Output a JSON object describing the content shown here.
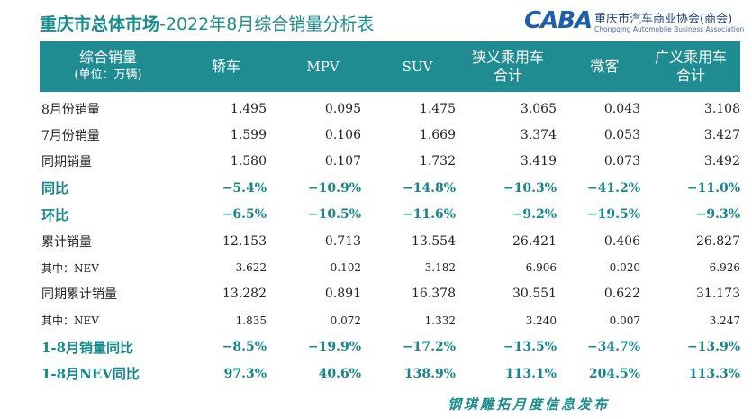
{
  "title": {
    "bold": "重庆市总体市场",
    "rest": "-2022年8月综合销量分析表"
  },
  "logo": {
    "mark": "CABA",
    "name_cn": "重庆市汽车商业协会(商会)",
    "name_en": "Chongqing Automobile Business Association"
  },
  "header": {
    "label_line1": "综合销量",
    "label_line2": "(单位：万辆)",
    "columns": [
      {
        "line1": "轿车",
        "line2": ""
      },
      {
        "line1": "MPV",
        "line2": ""
      },
      {
        "line1": "SUV",
        "line2": ""
      },
      {
        "line1": "狭义乘用车",
        "line2": "合计"
      },
      {
        "line1": "微客",
        "line2": ""
      },
      {
        "line1": "广义乘用车",
        "line2": "合计"
      }
    ]
  },
  "rows": [
    {
      "label": "8月份销量",
      "values": [
        "1.495",
        "0.095",
        "1.475",
        "3.065",
        "0.043",
        "3.108"
      ]
    },
    {
      "label": "7月份销量",
      "values": [
        "1.599",
        "0.106",
        "1.669",
        "3.374",
        "0.053",
        "3.427"
      ]
    },
    {
      "label": "同期销量",
      "values": [
        "1.580",
        "0.107",
        "1.732",
        "3.419",
        "0.073",
        "3.492"
      ]
    },
    {
      "label": "同比",
      "values": [
        "−5.4%",
        "−10.9%",
        "−14.8%",
        "−10.3%",
        "−41.2%",
        "−11.0%"
      ]
    },
    {
      "label": "环比",
      "values": [
        "−6.5%",
        "−10.5%",
        "−11.6%",
        "−9.2%",
        "−19.5%",
        "−9.3%"
      ]
    },
    {
      "label": "累计销量",
      "values": [
        "12.153",
        "0.713",
        "13.554",
        "26.421",
        "0.406",
        "26.827"
      ]
    },
    {
      "label": "其中：NEV",
      "values": [
        "3.622",
        "0.102",
        "3.182",
        "6.906",
        "0.020",
        "6.926"
      ]
    },
    {
      "label": "同期累计销量",
      "values": [
        "13.282",
        "0.891",
        "16.378",
        "30.551",
        "0.622",
        "31.173"
      ]
    },
    {
      "label": "其中：NEV",
      "values": [
        "1.835",
        "0.072",
        "1.332",
        "3.240",
        "0.007",
        "3.247"
      ]
    },
    {
      "label": "1-8月销量同比",
      "values": [
        "−8.5%",
        "−19.9%",
        "−17.2%",
        "−13.5%",
        "−34.7%",
        "−13.9%"
      ]
    },
    {
      "label": "1-8月NEV同比",
      "values": [
        "97.3%",
        "40.6%",
        "138.9%",
        "113.1%",
        "204.5%",
        "113.3%"
      ]
    }
  ],
  "footer": "钢琪雕拓月度信息发布",
  "colors": {
    "teal": "#1f8c91",
    "title": "#1a8c8c",
    "logo_blue": "#1e5fa8"
  }
}
